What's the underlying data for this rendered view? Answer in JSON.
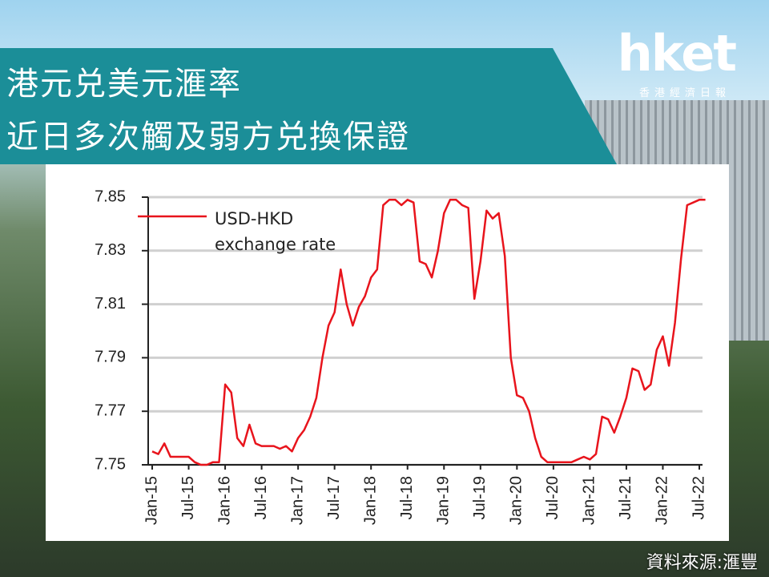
{
  "header": {
    "logo": "hket",
    "logo_subtitle": "香港經濟日報"
  },
  "chart_data": {
    "type": "line",
    "title": [
      "港元兑美元滙率",
      "近日多次觸及弱方兑換保證"
    ],
    "categories": [
      "Jan-15",
      null,
      null,
      null,
      null,
      null,
      "Jul-15",
      null,
      null,
      null,
      null,
      null,
      "Jan-16",
      null,
      null,
      null,
      null,
      null,
      "Jul-16",
      null,
      null,
      null,
      null,
      null,
      "Jan-17",
      null,
      null,
      null,
      null,
      null,
      "Jul-17",
      null,
      null,
      null,
      null,
      null,
      "Jan-18",
      null,
      null,
      null,
      null,
      null,
      "Jul-18",
      null,
      null,
      null,
      null,
      null,
      "Jan-19",
      null,
      null,
      null,
      null,
      null,
      "Jul-19",
      null,
      null,
      null,
      null,
      null,
      "Jan-20",
      null,
      null,
      null,
      null,
      null,
      "Jul-20",
      null,
      null,
      null,
      null,
      null,
      "Jan-21",
      null,
      null,
      null,
      null,
      null,
      "Jul-21",
      null,
      null,
      null,
      null,
      null,
      "Jan-22",
      null,
      null,
      null,
      null,
      null,
      "Jul-22",
      null
    ],
    "series": [
      {
        "name": "USD-HKD exchange rate",
        "color": "#e8141c",
        "values": [
          7.755,
          7.754,
          7.758,
          7.753,
          7.753,
          7.753,
          7.753,
          7.751,
          7.75,
          7.75,
          7.751,
          7.751,
          7.78,
          7.777,
          7.76,
          7.757,
          7.765,
          7.758,
          7.757,
          7.757,
          7.757,
          7.756,
          7.757,
          7.755,
          7.76,
          7.763,
          7.768,
          7.775,
          7.79,
          7.802,
          7.807,
          7.823,
          7.81,
          7.802,
          7.809,
          7.813,
          7.82,
          7.823,
          7.847,
          7.849,
          7.849,
          7.847,
          7.849,
          7.848,
          7.826,
          7.825,
          7.82,
          7.83,
          7.844,
          7.849,
          7.849,
          7.847,
          7.846,
          7.812,
          7.826,
          7.845,
          7.842,
          7.844,
          7.828,
          7.79,
          7.776,
          7.775,
          7.77,
          7.76,
          7.753,
          7.751,
          7.751,
          7.751,
          7.751,
          7.751,
          7.752,
          7.753,
          7.752,
          7.754,
          7.768,
          7.767,
          7.762,
          7.768,
          7.775,
          7.786,
          7.785,
          7.778,
          7.78,
          7.793,
          7.798,
          7.787,
          7.803,
          7.827,
          7.847,
          7.848,
          7.849,
          7.849
        ]
      }
    ],
    "ylim": [
      7.75,
      7.85
    ],
    "yticks": [
      7.75,
      7.77,
      7.79,
      7.81,
      7.83,
      7.85
    ],
    "grid": true
  },
  "source": "資料來源:滙豐"
}
